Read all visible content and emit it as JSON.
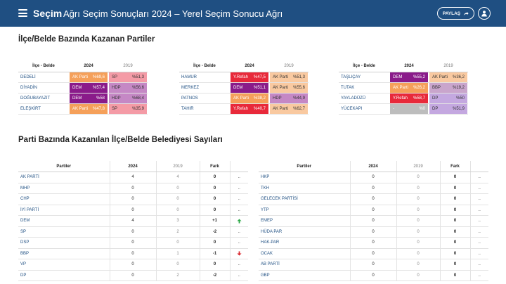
{
  "header": {
    "brand": "Seçim",
    "title": "Ağrı Seçim Sonuçları 2024 – Yerel Seçim Sonucu Ağrı",
    "share_label": "PAYLAŞ"
  },
  "section1": {
    "title": "İlçe/Belde Bazında Kazanan Partiler",
    "col_place": "İlçe - Belde",
    "col_2024": "2024",
    "col_2019": "2019",
    "groups": [
      {
        "rows": [
          {
            "place": "DEDELİ",
            "p24": "AK Parti",
            "v24": "%69,6",
            "c24": "#f5a05a",
            "p19": "SP",
            "v19": "%51,3",
            "c19": "#f49ba6"
          },
          {
            "place": "DİYADİN",
            "p24": "DEM",
            "v24": "%57,4",
            "c24": "#8a1b8a",
            "p19": "HDP",
            "v19": "%56,6",
            "c19": "#c588c5"
          },
          {
            "place": "DOĞUBAYAZIT",
            "p24": "DEM",
            "v24": "%58",
            "c24": "#8a1b8a",
            "p19": "HDP",
            "v19": "%68,4",
            "c19": "#c588c5"
          },
          {
            "place": "ELEŞKİRT",
            "p24": "AK Parti",
            "v24": "%47,8",
            "c24": "#f5a05a",
            "p19": "SP",
            "v19": "%35,9",
            "c19": "#f49ba6"
          }
        ]
      },
      {
        "rows": [
          {
            "place": "HAMUR",
            "p24": "Y.Refah",
            "v24": "%47,5",
            "c24": "#e8293a",
            "p19": "AK Parti",
            "v19": "%51,3",
            "c19": "#f9c9a0"
          },
          {
            "place": "MERKEZ",
            "p24": "DEM",
            "v24": "%51,1",
            "c24": "#8a1b8a",
            "p19": "AK Parti",
            "v19": "%55,6",
            "c19": "#f9c9a0"
          },
          {
            "place": "PATNOS",
            "p24": "AK Parti",
            "v24": "%38,2",
            "c24": "#f5a05a",
            "p19": "HDP",
            "v19": "%44,9",
            "c19": "#c588c5"
          },
          {
            "place": "TAHIR",
            "p24": "Y.Refah",
            "v24": "%40,7",
            "c24": "#e8293a",
            "p19": "AK Parti",
            "v19": "%62,7",
            "c19": "#f9c9a0"
          }
        ]
      },
      {
        "rows": [
          {
            "place": "TAŞLIÇAY",
            "p24": "DEM",
            "v24": "%55,2",
            "c24": "#8a1b8a",
            "p19": "AK Parti",
            "v19": "%36,2",
            "c19": "#f9c9a0"
          },
          {
            "place": "TUTAK",
            "p24": "AK Parti",
            "v24": "%26,2",
            "c24": "#f5a05a",
            "p19": "BBP",
            "v19": "%19,2",
            "c19": "#c9a5cc"
          },
          {
            "place": "YAYLADÜZÜ",
            "p24": "Y.Refah",
            "v24": "%58,7",
            "c24": "#e8293a",
            "p19": "DP",
            "v19": "%50",
            "c19": "#c4a8e0"
          },
          {
            "place": "YÜCEKAPI",
            "p24": "-",
            "v24": "%0",
            "c24": "#bdbdbd",
            "p19": "DP",
            "v19": "%51,9",
            "c19": "#c4a8e0"
          }
        ]
      }
    ]
  },
  "section2": {
    "title": "Parti Bazında Kazanılan İlçe/Belde Belediyesi Sayıları",
    "col_party": "Partiler",
    "col_2024": "2024",
    "col_2019": "2019",
    "col_diff": "Fark",
    "left": [
      {
        "party": "AK PARTİ",
        "v24": "4",
        "v19": "4",
        "diff": "0",
        "trend": "neutral"
      },
      {
        "party": "MHP",
        "v24": "0",
        "v19": "0",
        "diff": "0",
        "trend": "neutral"
      },
      {
        "party": "CHP",
        "v24": "0",
        "v19": "0",
        "diff": "0",
        "trend": "neutral"
      },
      {
        "party": "İYİ PARTİ",
        "v24": "0",
        "v19": "0",
        "diff": "0",
        "trend": "neutral"
      },
      {
        "party": "DEM",
        "v24": "4",
        "v19": "3",
        "diff": "+1",
        "trend": "up"
      },
      {
        "party": "SP",
        "v24": "0",
        "v19": "2",
        "diff": "-2",
        "trend": "neutral"
      },
      {
        "party": "DSP",
        "v24": "0",
        "v19": "0",
        "diff": "0",
        "trend": "neutral"
      },
      {
        "party": "BBP",
        "v24": "0",
        "v19": "1",
        "diff": "-1",
        "trend": "down"
      },
      {
        "party": "VP",
        "v24": "0",
        "v19": "0",
        "diff": "0",
        "trend": "neutral"
      },
      {
        "party": "DP",
        "v24": "0",
        "v19": "2",
        "diff": "-2",
        "trend": "neutral"
      }
    ],
    "right": [
      {
        "party": "HKP",
        "v24": "0",
        "v19": "0",
        "diff": "0",
        "trend": "neutral"
      },
      {
        "party": "TKH",
        "v24": "0",
        "v19": "0",
        "diff": "0",
        "trend": "neutral"
      },
      {
        "party": "GELECEK PARTİSİ",
        "v24": "0",
        "v19": "0",
        "diff": "0",
        "trend": "neutral"
      },
      {
        "party": "YTP",
        "v24": "0",
        "v19": "0",
        "diff": "0",
        "trend": "neutral"
      },
      {
        "party": "EMEP",
        "v24": "0",
        "v19": "0",
        "diff": "0",
        "trend": "neutral"
      },
      {
        "party": "HÜDA PAR",
        "v24": "0",
        "v19": "0",
        "diff": "0",
        "trend": "neutral"
      },
      {
        "party": "HAK-PAR",
        "v24": "0",
        "v19": "0",
        "diff": "0",
        "trend": "neutral"
      },
      {
        "party": "OCAK",
        "v24": "0",
        "v19": "0",
        "diff": "0",
        "trend": "neutral"
      },
      {
        "party": "AB PARTİ",
        "v24": "0",
        "v19": "0",
        "diff": "0",
        "trend": "neutral"
      },
      {
        "party": "GBP",
        "v24": "0",
        "v19": "0",
        "diff": "0",
        "trend": "neutral"
      }
    ],
    "neutral_symbol": "..",
    "icons": {
      "up": "arrow-up-icon",
      "down": "arrow-down-icon"
    },
    "colors": {
      "up": "#2aa745",
      "down": "#d9262c"
    }
  }
}
